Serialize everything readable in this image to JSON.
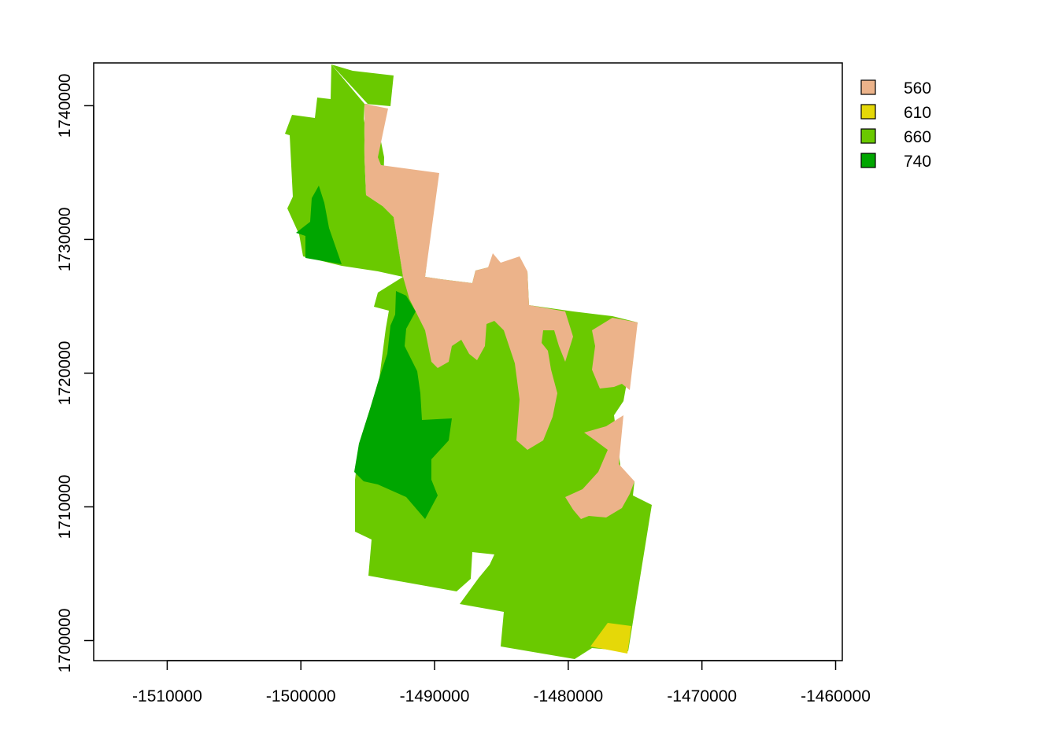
{
  "map": {
    "x_axis": {
      "range": [
        -1515500,
        -1459500
      ],
      "ticks": [
        -1510000,
        -1500000,
        -1490000,
        -1480000,
        -1470000,
        -1460000
      ],
      "tick_labels": [
        "-1510000",
        "-1500000",
        "-1490000",
        "-1480000",
        "-1470000",
        "-1460000"
      ]
    },
    "y_axis": {
      "range": [
        1698500,
        1743200
      ],
      "ticks": [
        1700000,
        1710000,
        1720000,
        1730000,
        1740000
      ],
      "tick_labels": [
        "1700000",
        "1710000",
        "1720000",
        "1730000",
        "1740000"
      ]
    },
    "legend": {
      "placement": "outside-right-top",
      "entries": [
        {
          "label": "560",
          "color": "#ecb38a"
        },
        {
          "label": "610",
          "color": "#e5d808"
        },
        {
          "label": "660",
          "color": "#6ac900"
        },
        {
          "label": "740",
          "color": "#00a600"
        }
      ]
    },
    "categories": [
      "560",
      "610",
      "660",
      "740"
    ]
  }
}
